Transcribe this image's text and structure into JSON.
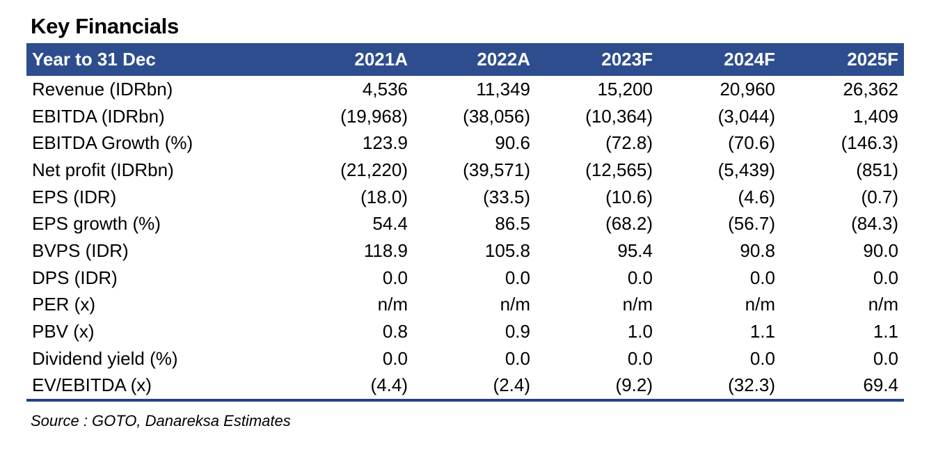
{
  "title": "Key Financials",
  "table": {
    "headers": [
      "Year to 31 Dec",
      "2021A",
      "2022A",
      "2023F",
      "2024F",
      "2025F"
    ],
    "rows": [
      [
        "Revenue (IDRbn)",
        "4,536",
        "11,349",
        "15,200",
        "20,960",
        "26,362"
      ],
      [
        "EBITDA (IDRbn)",
        "(19,968)",
        "(38,056)",
        "(10,364)",
        "(3,044)",
        "1,409"
      ],
      [
        "EBITDA Growth (%)",
        "123.9",
        "90.6",
        "(72.8)",
        "(70.6)",
        "(146.3)"
      ],
      [
        "Net profit (IDRbn)",
        "(21,220)",
        "(39,571)",
        "(12,565)",
        "(5,439)",
        "(851)"
      ],
      [
        "EPS (IDR)",
        "(18.0)",
        "(33.5)",
        "(10.6)",
        "(4.6)",
        "(0.7)"
      ],
      [
        "EPS growth (%)",
        "54.4",
        "86.5",
        "(68.2)",
        "(56.7)",
        "(84.3)"
      ],
      [
        "BVPS (IDR)",
        "118.9",
        "105.8",
        "95.4",
        "90.8",
        "90.0"
      ],
      [
        "DPS (IDR)",
        "0.0",
        "0.0",
        "0.0",
        "0.0",
        "0.0"
      ],
      [
        "PER (x)",
        "n/m",
        "n/m",
        "n/m",
        "n/m",
        "n/m"
      ],
      [
        "PBV (x)",
        "0.8",
        "0.9",
        "1.0",
        "1.1",
        "1.1"
      ],
      [
        "Dividend yield (%)",
        "0.0",
        "0.0",
        "0.0",
        "0.0",
        "0.0"
      ],
      [
        "EV/EBITDA (x)",
        "(4.4)",
        "(2.4)",
        "(9.2)",
        "(32.3)",
        "69.4"
      ]
    ]
  },
  "source": "Source : GOTO, Danareksa Estimates",
  "colors": {
    "header_bg": "#2d4d8e",
    "header_text": "#ffffff",
    "bottom_rule": "#23408a"
  }
}
